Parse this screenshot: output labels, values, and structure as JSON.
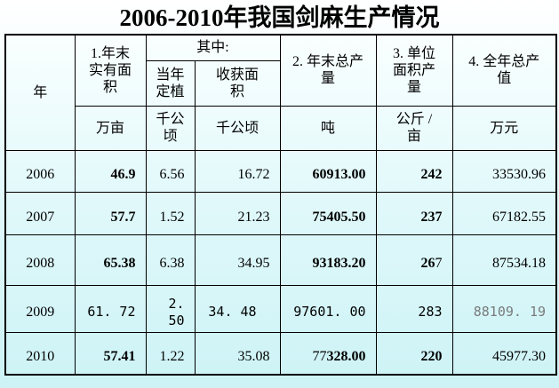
{
  "title": "2006-2010年我国剑麻生产情况",
  "colors": {
    "background_top": "#ffffff",
    "background_bottom": "#cdf3f6",
    "border": "#000000",
    "text": "#000000",
    "muted_text": "#7a7a7a"
  },
  "table": {
    "header": {
      "year": "年",
      "area": "1.年末\n实有面\n积",
      "among": "其中:",
      "planted": "当年\n定植",
      "harvested": "收获面\n积",
      "output": "2. 年末总产\n量",
      "unit_yield": "3. 单位\n面积产\n量",
      "value": "4. 全年总产\n值",
      "units": [
        "万亩",
        "千公\n顷",
        "千公顷",
        "吨",
        "公斤 /\n亩",
        "万元"
      ]
    },
    "rows": [
      {
        "year": "2006",
        "cells": [
          {
            "text": "46.9",
            "bold": true
          },
          {
            "text": "6.56"
          },
          {
            "text": "16.72"
          },
          {
            "text": "60913.00",
            "bold": true
          },
          {
            "text": "242",
            "bold": true
          },
          {
            "text": "33530.96"
          }
        ]
      },
      {
        "year": "2007",
        "cells": [
          {
            "text": "57.7",
            "bold": true
          },
          {
            "text": "1.52"
          },
          {
            "text": "21.23"
          },
          {
            "text": "75405.50",
            "bold": true
          },
          {
            "text": "237",
            "bold": true
          },
          {
            "text": "67182.55"
          }
        ]
      },
      {
        "year": "2008",
        "cells": [
          {
            "text": "65.38",
            "bold": true
          },
          {
            "text": "6.38"
          },
          {
            "text": "34.95"
          },
          {
            "text": "93183.20",
            "bold": true
          },
          {
            "parts": [
              {
                "text": "26",
                "bold": true
              },
              {
                "text": "7"
              }
            ]
          },
          {
            "text": "87534.18"
          }
        ]
      },
      {
        "year": "2009",
        "alt_font": true,
        "cells": [
          {
            "text": "61. 72"
          },
          {
            "text": "2. 50"
          },
          {
            "text": "34. 48",
            "align": "center"
          },
          {
            "text": "97601. 00"
          },
          {
            "text": "283"
          },
          {
            "text": "88109. 19",
            "muted": true
          }
        ]
      },
      {
        "year": "2010",
        "cells": [
          {
            "text": "57.41",
            "bold": true
          },
          {
            "text": "1.22"
          },
          {
            "text": "35.08"
          },
          {
            "parts": [
              {
                "text": "77"
              },
              {
                "text": "328.00",
                "bold": true
              }
            ]
          },
          {
            "text": "220",
            "bold": true
          },
          {
            "text": "45977.30"
          }
        ]
      }
    ]
  },
  "chart_data": {
    "type": "table",
    "title": "2006-2010年我国剑麻生产情况",
    "columns": [
      "年",
      "1.年末实有面积",
      "其中:当年定植",
      "其中:收获面积",
      "2.年末总产量",
      "3.单位面积产量",
      "4.全年总产值"
    ],
    "units": [
      "",
      "万亩",
      "千公顷",
      "千公顷",
      "吨",
      "公斤/亩",
      "万元"
    ],
    "rows": [
      [
        2006,
        46.9,
        6.56,
        16.72,
        60913.0,
        242,
        33530.96
      ],
      [
        2007,
        57.7,
        1.52,
        21.23,
        75405.5,
        237,
        67182.55
      ],
      [
        2008,
        65.38,
        6.38,
        34.95,
        93183.2,
        267,
        87534.18
      ],
      [
        2009,
        61.72,
        2.5,
        34.48,
        97601.0,
        283,
        88109.19
      ],
      [
        2010,
        57.41,
        1.22,
        35.08,
        77328.0,
        220,
        45977.3
      ]
    ]
  }
}
